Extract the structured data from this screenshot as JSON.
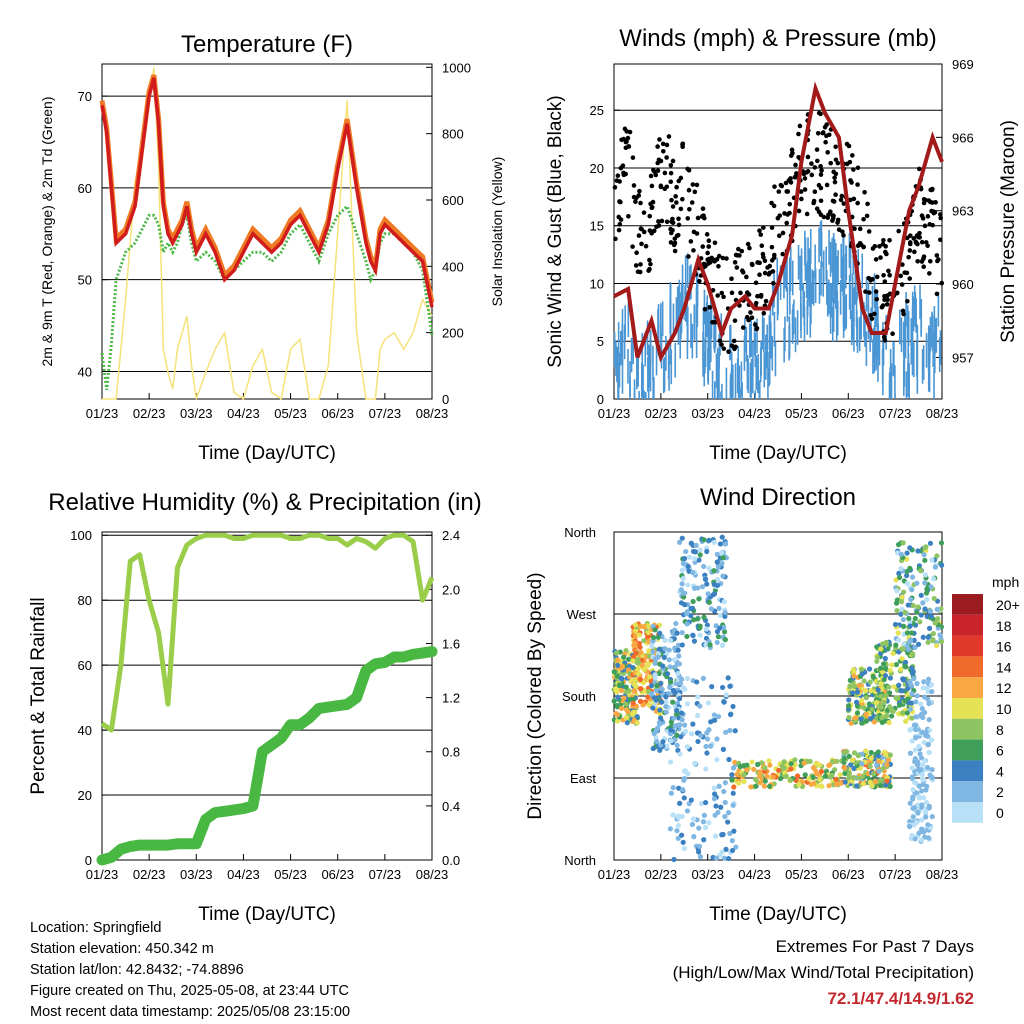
{
  "colors": {
    "temp_2m": "#d01c1c",
    "temp_9m": "#f07a24",
    "dewpoint": "#4db848",
    "solar": "#f5e27a",
    "wind": "#4a96d4",
    "gust": "#000000",
    "pressure": "#a31a1a",
    "rh": "#9acd4a",
    "precip": "#49b843",
    "extremes": "#c2282d"
  },
  "chart_data": [
    {
      "id": "temperature",
      "type": "line",
      "title": "Temperature (F)",
      "xlabel": "Time (Day/UTC)",
      "ylabel": "2m & 9m T (Red, Orange) & 2m Td (Green)",
      "y2label": "Solar Insolation (Yellow)",
      "x_ticks": [
        "01/23",
        "02/23",
        "03/23",
        "04/23",
        "05/23",
        "06/23",
        "07/23",
        "08/23"
      ],
      "ylim": [
        37,
        73.5
      ],
      "y_ticks": [
        40,
        50,
        60,
        70
      ],
      "y2lim": [
        0,
        1010
      ],
      "y2_ticks": [
        0,
        200,
        400,
        600,
        800,
        1000
      ],
      "x": [
        0,
        0.1,
        0.2,
        0.3,
        0.5,
        0.7,
        0.9,
        1.0,
        1.1,
        1.2,
        1.3,
        1.4,
        1.5,
        1.6,
        1.7,
        1.8,
        1.9,
        2.0,
        2.2,
        2.4,
        2.6,
        2.8,
        3.0,
        3.2,
        3.4,
        3.6,
        3.8,
        4.0,
        4.2,
        4.4,
        4.6,
        4.8,
        5.0,
        5.2,
        5.4,
        5.6,
        5.7,
        5.8,
        5.9,
        6.0,
        6.2,
        6.4,
        6.6,
        6.8,
        7.0
      ],
      "series": [
        {
          "values": [
            69,
            66,
            60,
            54,
            55,
            58,
            66,
            70,
            72,
            67,
            58,
            55,
            54,
            55,
            56,
            58,
            55,
            53,
            55,
            53,
            50,
            51,
            53,
            55,
            54,
            53,
            54,
            56,
            57,
            55,
            53,
            56,
            62,
            67,
            60,
            54,
            52,
            51,
            55,
            56,
            55,
            54,
            53,
            52,
            47
          ]
        },
        {
          "values": [
            69.5,
            66.5,
            60.5,
            54.5,
            55.5,
            58.5,
            66.5,
            70.5,
            72.3,
            67.5,
            58.5,
            55.5,
            54.5,
            55.5,
            56.5,
            58.5,
            55.5,
            53.5,
            55.5,
            53.5,
            50.5,
            51.5,
            53.5,
            55.5,
            54.5,
            53.5,
            54.5,
            56.5,
            57.5,
            55.5,
            53.5,
            56.5,
            62.5,
            67.5,
            60.5,
            54.5,
            52.5,
            51.5,
            55.5,
            56.5,
            55.5,
            54.5,
            53.5,
            52.5,
            47.5
          ]
        },
        {
          "values": [
            42,
            38,
            43,
            50,
            53,
            54,
            56,
            57,
            57,
            56,
            53,
            54,
            53,
            54,
            56,
            57,
            54,
            52,
            53,
            52,
            50,
            51,
            52,
            53,
            53,
            52,
            53,
            55,
            56,
            54,
            52,
            55,
            57,
            58,
            55,
            52,
            50,
            51,
            54,
            55,
            55,
            54,
            53,
            51,
            44
          ]
        },
        {
          "values": [
            0,
            0,
            0,
            0,
            300,
            650,
            800,
            900,
            1000,
            700,
            150,
            80,
            30,
            150,
            200,
            250,
            100,
            0,
            80,
            150,
            200,
            20,
            0,
            100,
            150,
            20,
            0,
            150,
            180,
            0,
            0,
            100,
            500,
            900,
            200,
            0,
            0,
            0,
            150,
            180,
            200,
            150,
            200,
            300,
            250
          ]
        }
      ]
    },
    {
      "id": "winds",
      "type": "line",
      "title": "Winds (mph) & Pressure (mb)",
      "xlabel": "Time (Day/UTC)",
      "ylabel": "Sonic Wind & Gust (Blue, Black)",
      "y2label": "Station Pressure (Maroon)",
      "x_ticks": [
        "01/23",
        "02/23",
        "03/23",
        "04/23",
        "05/23",
        "06/23",
        "07/23",
        "08/23"
      ],
      "ylim": [
        0,
        29
      ],
      "y_ticks": [
        0,
        5,
        10,
        15,
        20,
        25
      ],
      "y2lim": [
        955.3,
        969
      ],
      "y2_ticks": [
        957,
        960,
        963,
        966,
        969
      ],
      "x": [
        0,
        0.3,
        0.5,
        0.8,
        1.0,
        1.3,
        1.5,
        1.8,
        2.0,
        2.3,
        2.5,
        2.8,
        3.0,
        3.3,
        3.5,
        3.8,
        4.0,
        4.3,
        4.5,
        4.8,
        5.0,
        5.3,
        5.5,
        5.8,
        6.0,
        6.3,
        6.5,
        6.8,
        7.0
      ],
      "series": [
        {
          "values": [
            6,
            5,
            2,
            4,
            6,
            8,
            10,
            9,
            6,
            4,
            3,
            4,
            4,
            6,
            9,
            10,
            11,
            12,
            12,
            11,
            11,
            10,
            8,
            5,
            5,
            6,
            7,
            6,
            6
          ]
        },
        {
          "values": [
            18,
            20,
            14,
            16,
            20,
            17,
            18,
            14,
            10,
            9,
            8,
            10,
            9,
            13,
            16,
            18,
            20,
            21,
            20,
            19,
            18,
            15,
            11,
            9,
            10,
            13,
            16,
            14,
            13
          ]
        },
        {
          "values": [
            959.5,
            959.8,
            957,
            958.5,
            957,
            958,
            959,
            961,
            960,
            958,
            959,
            959.5,
            959,
            959,
            960,
            962,
            965,
            968,
            967,
            966,
            963,
            959,
            958,
            958,
            960,
            963,
            964,
            966,
            965
          ]
        }
      ]
    },
    {
      "id": "humidity",
      "type": "line",
      "title": "Relative Humidity (%) & Precipitation (in)",
      "xlabel": "Time (Day/UTC)",
      "ylabel": "Percent & Total Rainfall",
      "x_ticks": [
        "01/23",
        "02/23",
        "03/23",
        "04/23",
        "05/23",
        "06/23",
        "07/23",
        "08/23"
      ],
      "ylim": [
        0,
        101
      ],
      "y_ticks": [
        0,
        20,
        40,
        60,
        80,
        100
      ],
      "y2lim": [
        0,
        2.424
      ],
      "y2_ticks": [
        0.0,
        0.4,
        0.8,
        1.2,
        1.6,
        2.0,
        2.4
      ],
      "x": [
        0,
        0.2,
        0.4,
        0.6,
        0.8,
        1.0,
        1.2,
        1.4,
        1.6,
        1.8,
        2.0,
        2.2,
        2.4,
        2.6,
        2.8,
        3.0,
        3.2,
        3.4,
        3.6,
        3.8,
        4.0,
        4.2,
        4.4,
        4.6,
        4.8,
        5.0,
        5.2,
        5.4,
        5.6,
        5.8,
        6.0,
        6.2,
        6.4,
        6.6,
        6.8,
        7.0
      ],
      "series": [
        {
          "values": [
            42,
            40,
            60,
            92,
            94,
            80,
            70,
            48,
            90,
            97,
            99,
            100,
            100,
            100,
            99,
            99,
            100,
            100,
            100,
            100,
            99,
            99,
            100,
            100,
            99,
            99,
            97,
            99,
            98,
            96,
            99,
            100,
            100,
            98,
            80,
            87
          ]
        },
        {
          "values": [
            0,
            0.02,
            0.08,
            0.1,
            0.11,
            0.11,
            0.11,
            0.11,
            0.12,
            0.12,
            0.12,
            0.3,
            0.35,
            0.36,
            0.37,
            0.38,
            0.4,
            0.8,
            0.85,
            0.9,
            1.0,
            1.0,
            1.05,
            1.12,
            1.13,
            1.14,
            1.15,
            1.2,
            1.4,
            1.45,
            1.46,
            1.5,
            1.5,
            1.52,
            1.53,
            1.54
          ]
        }
      ]
    },
    {
      "id": "direction",
      "type": "scatter",
      "title": "Wind Direction",
      "xlabel": "Time (Day/UTC)",
      "ylabel": "Direction (Colored By Speed)",
      "x_ticks": [
        "01/23",
        "02/23",
        "03/23",
        "04/23",
        "05/23",
        "06/23",
        "07/23",
        "08/23"
      ],
      "ylim": [
        0,
        360
      ],
      "y_ticks": [
        "North",
        "East",
        "South",
        "West",
        "North"
      ],
      "legend": {
        "title": "mph",
        "placement": "right",
        "labels": [
          "20+",
          "18",
          "16",
          "14",
          "12",
          "10",
          "8",
          "6",
          "4",
          "2",
          "0"
        ],
        "colors": [
          "#9a1c20",
          "#c8242a",
          "#e23a2a",
          "#f06a2b",
          "#f8a742",
          "#e5e255",
          "#8fc462",
          "#3f9f5a",
          "#3b80c0",
          "#7fb6e2",
          "#b8e0f6"
        ]
      },
      "clusters": [
        {
          "x": [
            0.0,
            0.5
          ],
          "dir": [
            150,
            230
          ],
          "speed": [
            4,
            12
          ]
        },
        {
          "x": [
            0.4,
            1.0
          ],
          "dir": [
            160,
            260
          ],
          "speed": [
            8,
            14
          ]
        },
        {
          "x": [
            0.8,
            1.4
          ],
          "dir": [
            120,
            260
          ],
          "speed": [
            0,
            6
          ]
        },
        {
          "x": [
            1.4,
            2.4
          ],
          "dir": [
            230,
            355
          ],
          "speed": [
            0,
            6
          ]
        },
        {
          "x": [
            1.2,
            2.6
          ],
          "dir": [
            0,
            200
          ],
          "speed": [
            0,
            5
          ]
        },
        {
          "x": [
            2.5,
            5.0
          ],
          "dir": [
            80,
            110
          ],
          "speed": [
            6,
            14
          ]
        },
        {
          "x": [
            4.9,
            5.9
          ],
          "dir": [
            80,
            120
          ],
          "speed": [
            2,
            14
          ]
        },
        {
          "x": [
            5.0,
            5.8
          ],
          "dir": [
            150,
            210
          ],
          "speed": [
            3,
            12
          ]
        },
        {
          "x": [
            5.6,
            6.4
          ],
          "dir": [
            150,
            240
          ],
          "speed": [
            4,
            10
          ]
        },
        {
          "x": [
            6.0,
            7.0
          ],
          "dir": [
            230,
            350
          ],
          "speed": [
            0,
            10
          ]
        },
        {
          "x": [
            6.3,
            6.8
          ],
          "dir": [
            20,
            200
          ],
          "speed": [
            0,
            3
          ]
        }
      ]
    }
  ],
  "info": {
    "location": "Location: Springfield",
    "elevation": "Station elevation: 450.342 m",
    "latlon": "Station lat/lon: 42.8432; -74.8896",
    "created": "Figure created on Thu, 2025-05-08, at 23:44 UTC",
    "recent": "Most recent data timestamp: 2025/05/08 23:15:00"
  },
  "extremes": {
    "title": "Extremes For Past 7 Days",
    "subtitle": "(High/Low/Max Wind/Total Precipitation)",
    "values": "72.1/47.4/14.9/1.62"
  }
}
